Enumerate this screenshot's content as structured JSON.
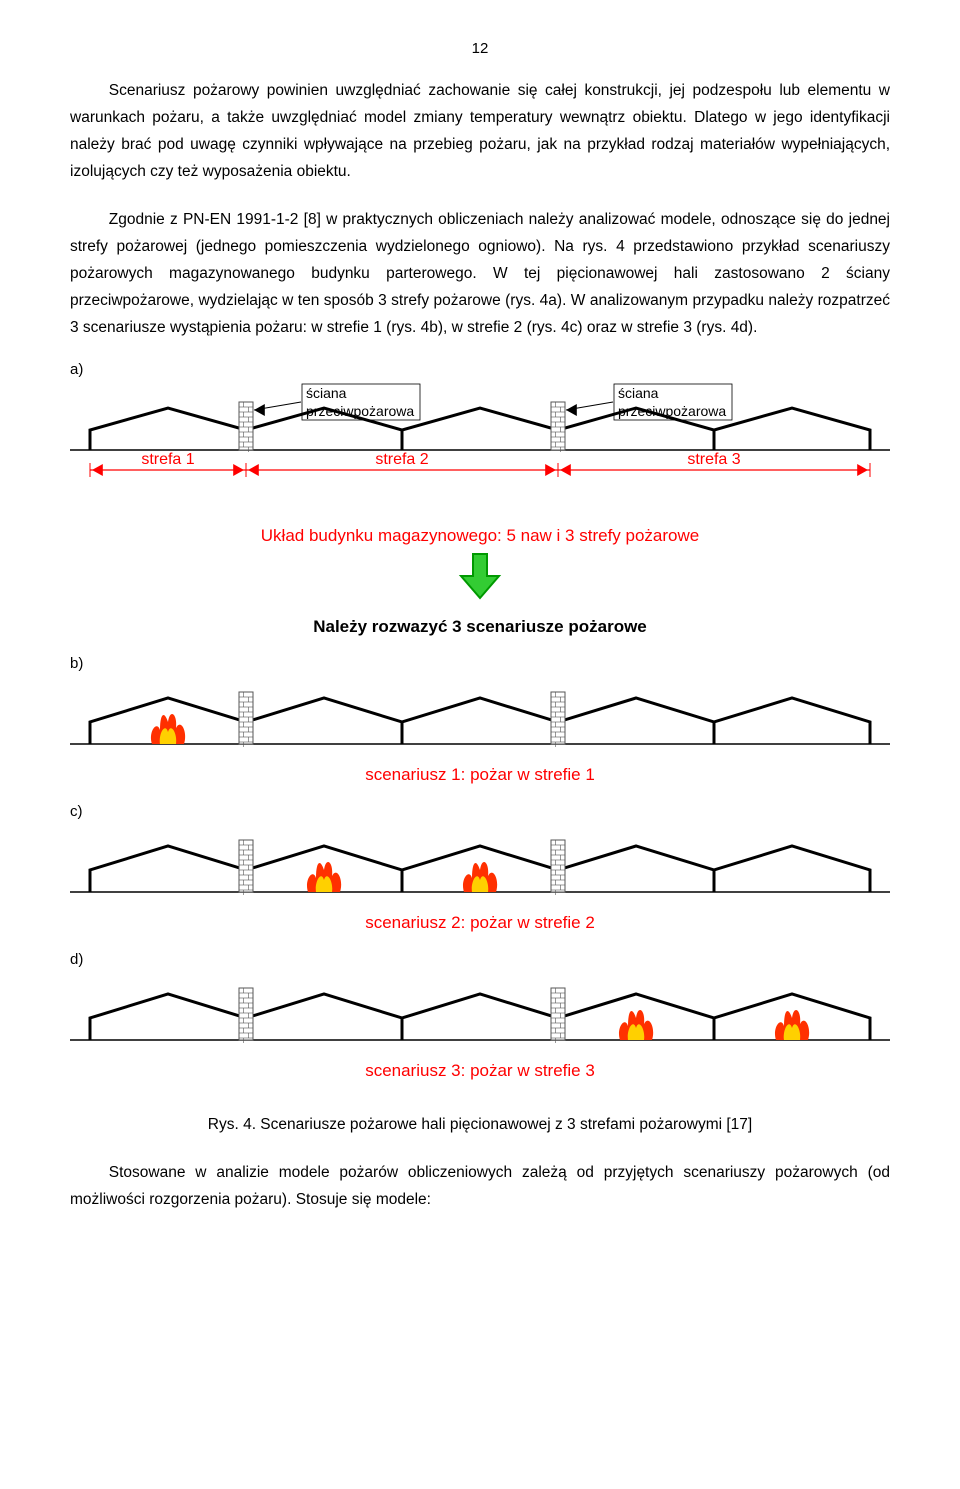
{
  "page_number": "12",
  "paragraphs": {
    "p1": "Scenariusz pożarowy powinien uwzględniać zachowanie się całej konstrukcji, jej podzespołu lub elementu w warunkach pożaru, a także uwzględniać model zmiany temperatury wewnątrz obiektu. Dlatego w jego identyfikacji należy brać pod uwagę czynniki wpływające na przebieg pożaru, jak na przykład rodzaj materiałów wypełniających, izolujących czy też wyposażenia obiektu.",
    "p2": "Zgodnie z PN-EN 1991-1-2 [8] w praktycznych obliczeniach należy analizować modele, odnoszące się do jednej strefy pożarowej (jednego pomieszczenia wydzielonego ogniowo). Na rys. 4 przedstawiono przykład scenariuszy pożarowych magazynowanego budynku parterowego. W tej pięcionawowej hali zastosowano 2 ściany przeciwpożarowe, wydzielając w ten sposób 3 strefy pożarowe (rys. 4a). W analizowanym przypadku należy rozpatrzeć 3 scenariusze wystąpienia pożaru: w strefie 1 (rys. 4b), w strefie 2 (rys. 4c) oraz w strefie 3 (rys. 4d).",
    "p3": "Stosowane w analizie modele pożarów obliczeniowych zależą od przyjętych scenariuszy pożarowych (od możliwości rozgorzenia pożaru). Stosuje się modele:"
  },
  "figure": {
    "panel_labels": {
      "a": "a)",
      "b": "b)",
      "c": "c)",
      "d": "d)"
    },
    "colors": {
      "structure": "#000000",
      "red": "#ff0000",
      "flame_outer": "#ff3000",
      "flame_inner": "#ffd000",
      "arrow_fill": "#33cc33",
      "arrow_stroke": "#009900",
      "wall_fill": "#ffffff",
      "wall_stroke": "#555555"
    },
    "building": {
      "nave_count": 5,
      "zone_split": [
        1,
        2,
        2
      ],
      "walls_after_nave": [
        1,
        3
      ],
      "line_width": 3
    },
    "labels": {
      "wall": "ściana\nprzeciwpożarowa",
      "zones": [
        "strefa 1",
        "strefa 2",
        "strefa 3"
      ],
      "layout_caption": "Układ budynku magazynowego: 5 naw i 3 strefy pożarowe",
      "scenarios_header": "Należy rozwazyć 3 scenariusze pożarowe",
      "scen1": "scenariusz 1: pożar w strefie 1",
      "scen2": "scenariusz 2: pożar w strefie 2",
      "scen3": "scenariusz 3: pożar w strefie 3"
    },
    "fires": {
      "b": [
        0
      ],
      "c": [
        1,
        2
      ],
      "d": [
        3,
        4
      ]
    }
  },
  "fig_caption": "Rys. 4. Scenariusze pożarowe hali pięcionawowej z 3 strefami pożarowymi [17]"
}
